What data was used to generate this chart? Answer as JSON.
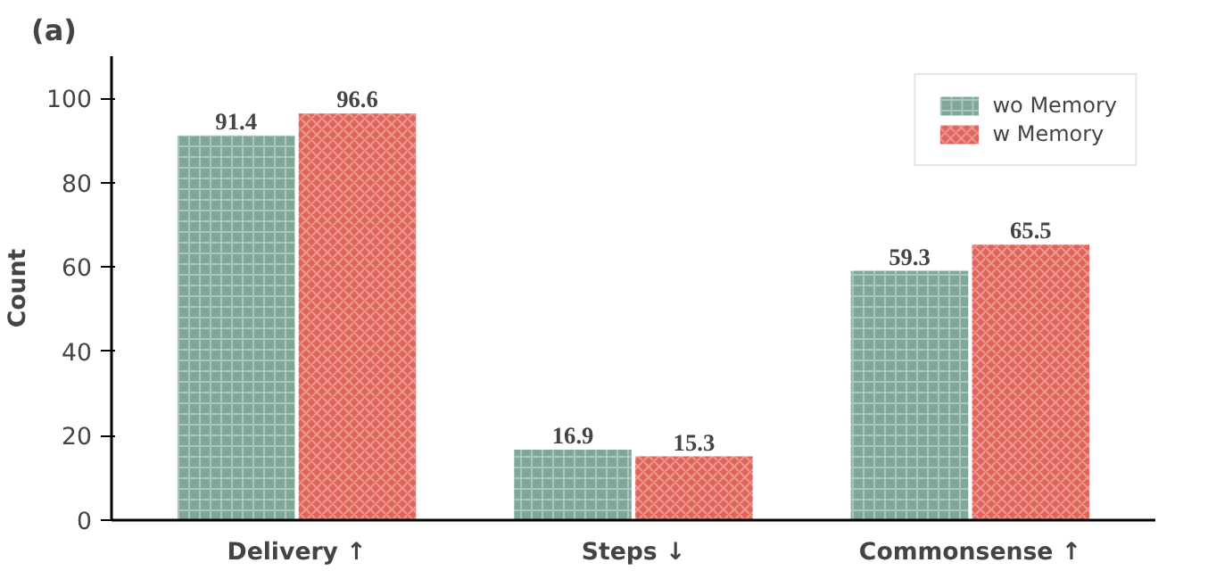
{
  "chart_data": {
    "type": "bar",
    "title": "(a)",
    "ylabel": "Count",
    "categories": [
      "Delivery ↑",
      "Steps ↓",
      "Commonsense ↑"
    ],
    "series": [
      {
        "name": "wo Memory",
        "color": "#7fa898",
        "values": [
          91.4,
          16.9,
          59.3
        ]
      },
      {
        "name": "w Memory",
        "color": "#e0645a",
        "values": [
          96.6,
          15.3,
          65.5
        ]
      }
    ],
    "ylim": [
      0,
      110
    ],
    "yticks": [
      0,
      20,
      40,
      60,
      80,
      100
    ],
    "data_labels": true,
    "legend": "top right",
    "grid": false
  }
}
